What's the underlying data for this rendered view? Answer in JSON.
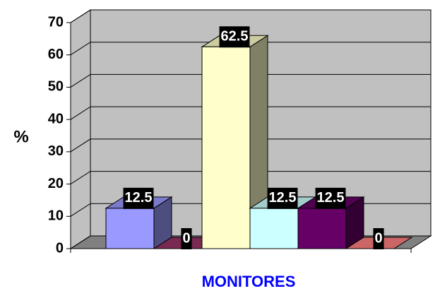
{
  "chart_data": {
    "type": "bar3d",
    "categories": [
      "MONITORES"
    ],
    "ylabel": "%",
    "series": [
      {
        "color": "#9999ff",
        "values": [
          12.5
        ]
      },
      {
        "color": "#993366",
        "values": [
          0
        ]
      },
      {
        "color": "#ffffcc",
        "values": [
          62.5
        ]
      },
      {
        "color": "#ccffff",
        "values": [
          12.5
        ]
      },
      {
        "color": "#660066",
        "values": [
          12.5
        ]
      },
      {
        "color": "#ff8080",
        "values": [
          0
        ]
      }
    ],
    "ylim": [
      0,
      70
    ],
    "yticks": [
      0,
      10,
      20,
      30,
      40,
      50,
      60,
      70
    ],
    "grid": true
  }
}
